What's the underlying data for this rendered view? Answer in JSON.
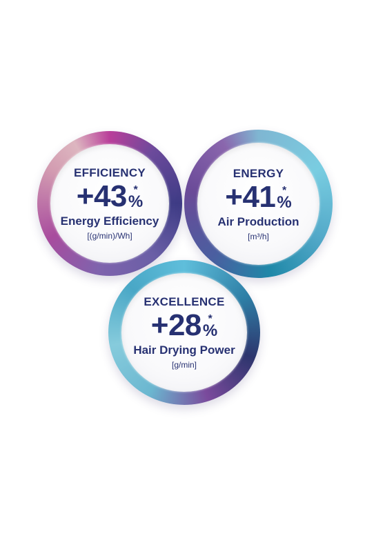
{
  "circles": {
    "efficiency": {
      "heading": "EFFICIENCY",
      "number": "+43",
      "asterisk": "*",
      "percent": "%",
      "label": "Energy Efficiency",
      "unit": "[(g/min)/Wh]"
    },
    "energy": {
      "heading": "ENERGY",
      "number": "+41",
      "asterisk": "*",
      "percent": "%",
      "label": "Air Production",
      "unit": "[m³/h]"
    },
    "excellence": {
      "heading": "EXCELLENCE",
      "number": "+28",
      "asterisk": "*",
      "percent": "%",
      "label": "Hair Drying Power",
      "unit": "[g/min]"
    }
  },
  "colors": {
    "text": "#273172",
    "efficiency_ring": "#b93f9a",
    "energy_ring": "#52a8c8",
    "excellence_ring": "#2e7fa6"
  }
}
